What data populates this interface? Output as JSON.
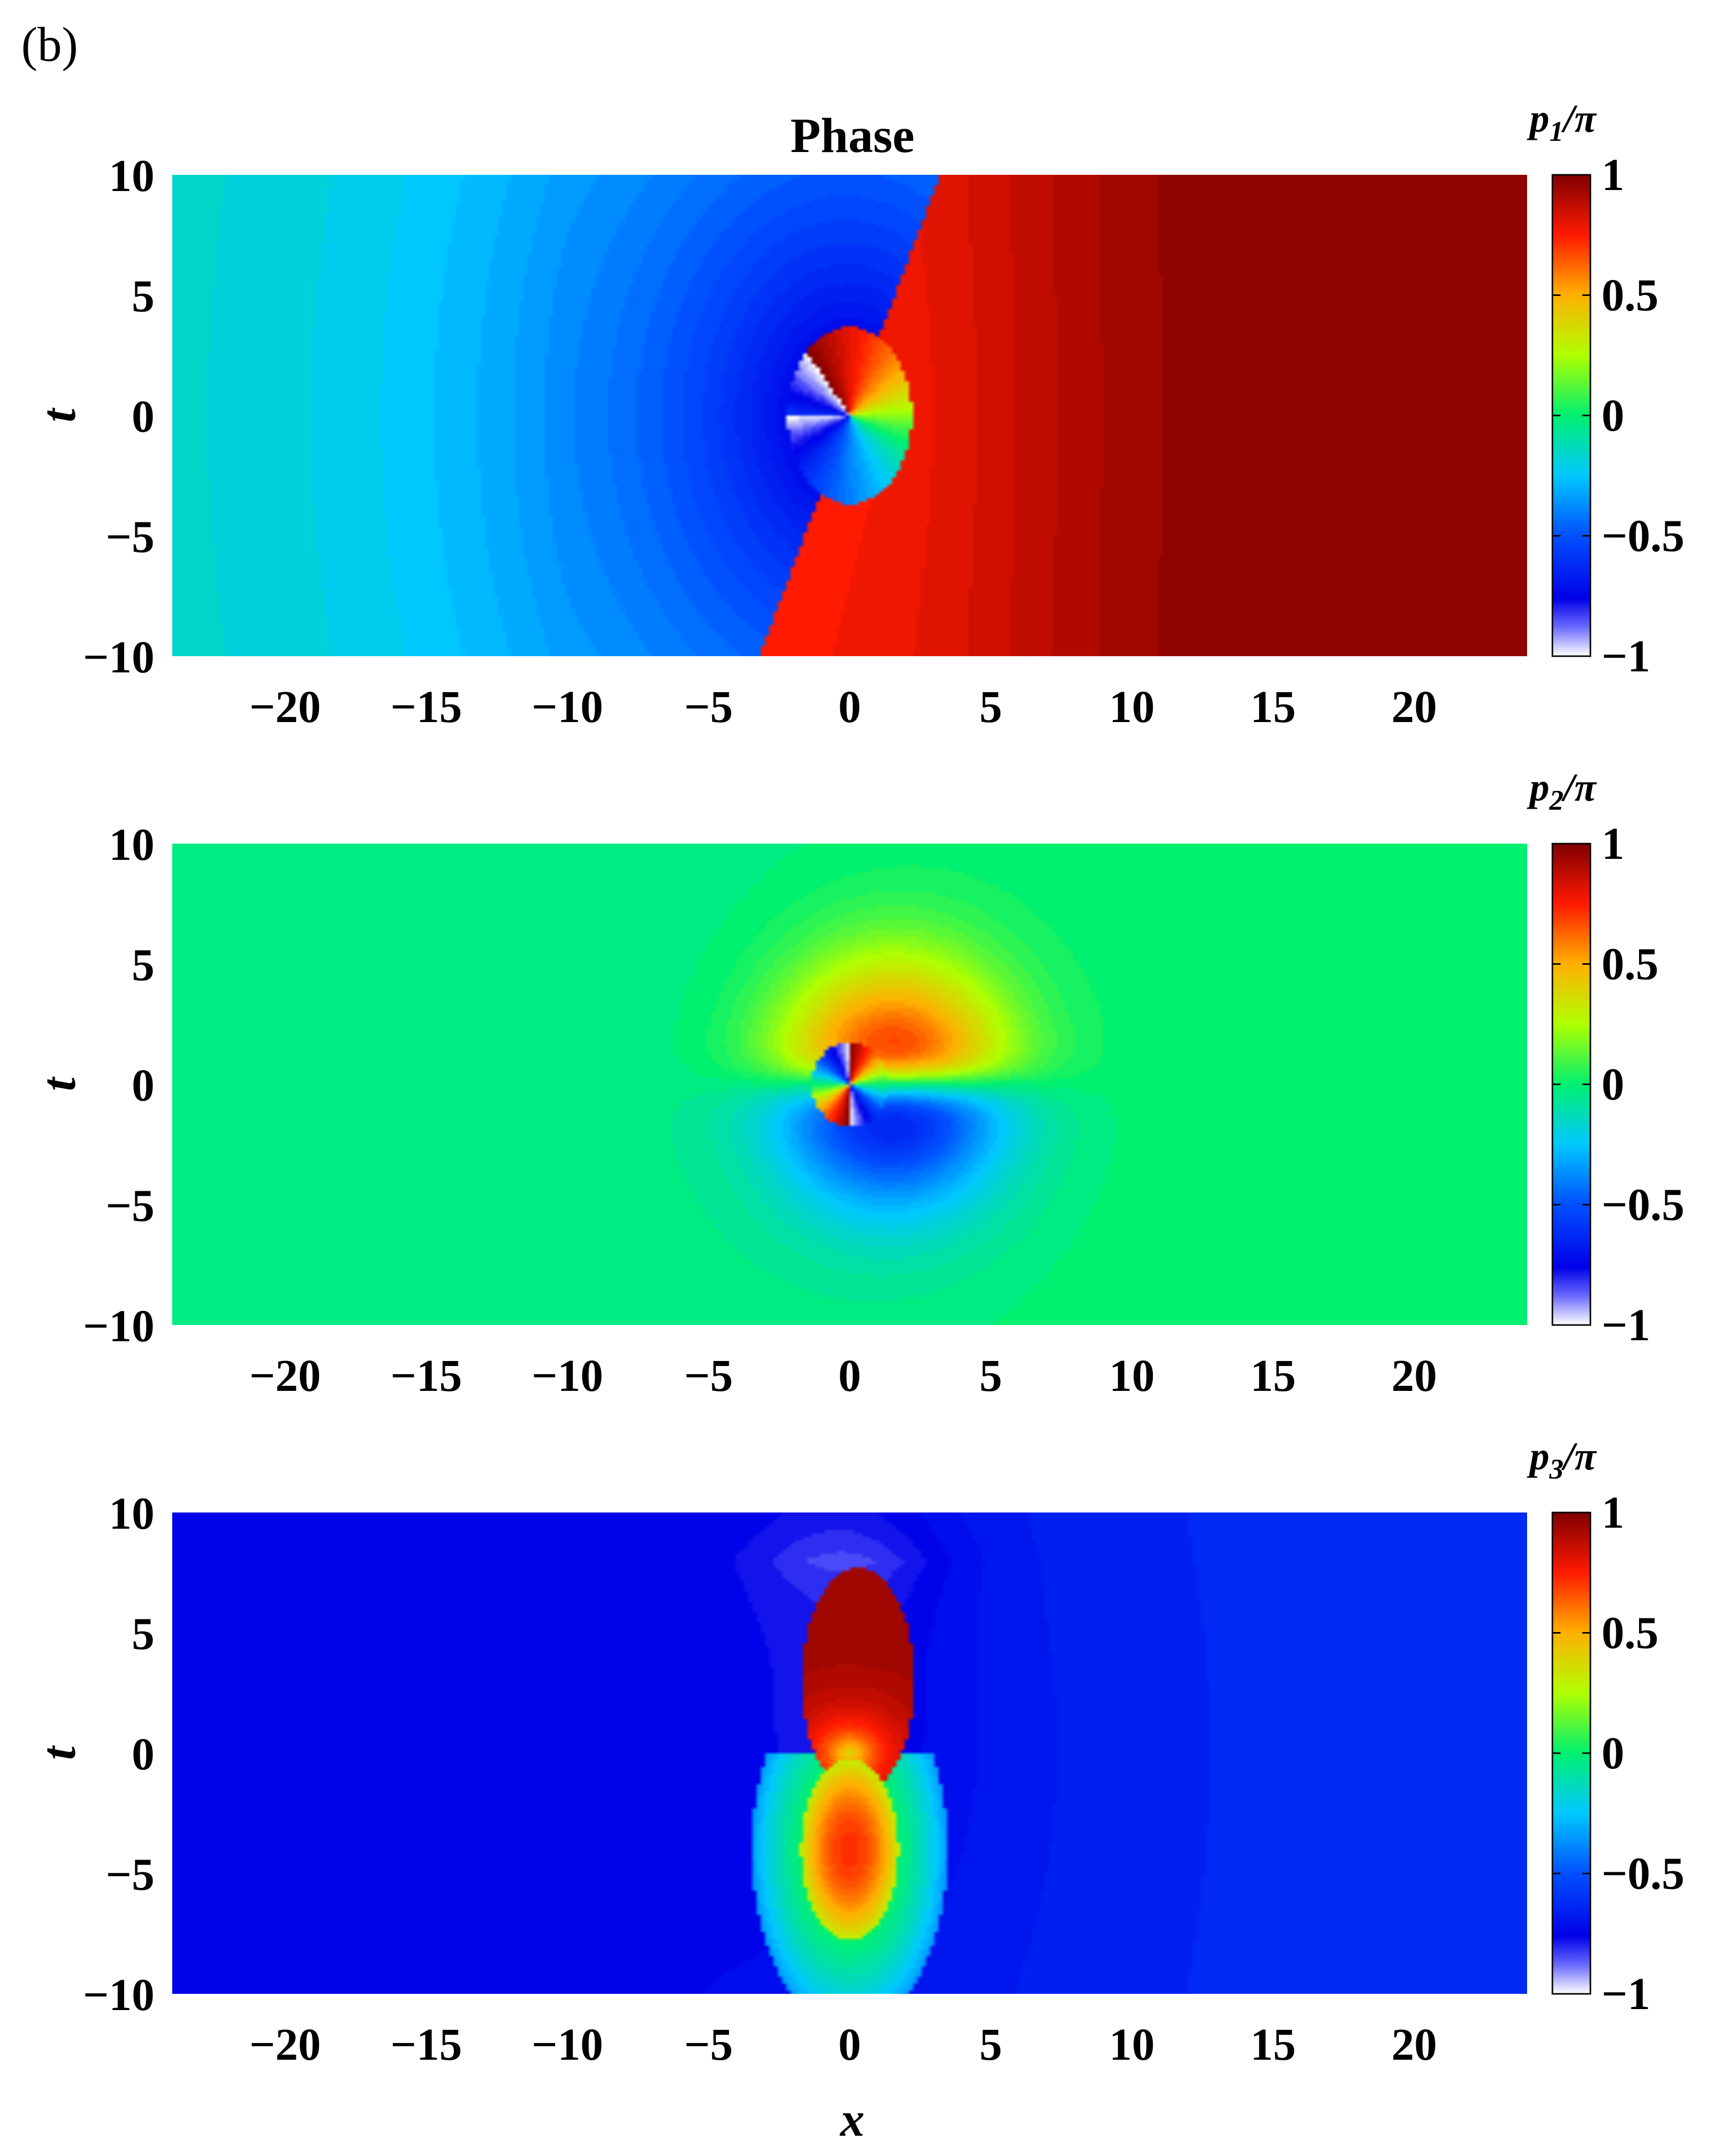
{
  "figure": {
    "panel_label": "(b)",
    "title": "Phase",
    "xlabel": "x",
    "ylabel": "t"
  },
  "chart_data": [
    {
      "type": "heatmap",
      "title": "Phase",
      "xlabel": "",
      "ylabel": "t",
      "xlim": [
        -24,
        24
      ],
      "ylim": [
        -10,
        10
      ],
      "xticks": [
        -20,
        -15,
        -10,
        -5,
        0,
        5,
        10,
        15,
        20
      ],
      "xtick_labels": [
        "−20",
        "−15",
        "−10",
        "−5",
        "0",
        "5",
        "10",
        "15",
        "20"
      ],
      "yticks": [
        10,
        5,
        0,
        -5,
        -10
      ],
      "ytick_labels": [
        "10",
        "5",
        "0",
        "−5",
        "−10"
      ],
      "colorbar": {
        "label_main": "p",
        "label_sub": "1",
        "label_tail": "/π",
        "range": [
          -1,
          1
        ],
        "ticks": [
          1,
          0.5,
          0,
          -0.5,
          -1
        ],
        "tick_labels": [
          "1",
          "0.5",
          "0",
          "−0.5",
          "−1"
        ]
      },
      "field": "p1"
    },
    {
      "type": "heatmap",
      "title": "",
      "xlabel": "",
      "ylabel": "t",
      "xlim": [
        -24,
        24
      ],
      "ylim": [
        -10,
        10
      ],
      "xticks": [
        -20,
        -15,
        -10,
        -5,
        0,
        5,
        10,
        15,
        20
      ],
      "xtick_labels": [
        "−20",
        "−15",
        "−10",
        "−5",
        "0",
        "5",
        "10",
        "15",
        "20"
      ],
      "yticks": [
        10,
        5,
        0,
        -5,
        -10
      ],
      "ytick_labels": [
        "10",
        "5",
        "0",
        "−5",
        "−10"
      ],
      "colorbar": {
        "label_main": "p",
        "label_sub": "2",
        "label_tail": "/π",
        "range": [
          -1,
          1
        ],
        "ticks": [
          1,
          0.5,
          0,
          -0.5,
          -1
        ],
        "tick_labels": [
          "1",
          "0.5",
          "0",
          "−0.5",
          "−1"
        ]
      },
      "field": "p2"
    },
    {
      "type": "heatmap",
      "title": "",
      "xlabel": "x",
      "ylabel": "t",
      "xlim": [
        -24,
        24
      ],
      "ylim": [
        -10,
        10
      ],
      "xticks": [
        -20,
        -15,
        -10,
        -5,
        0,
        5,
        10,
        15,
        20
      ],
      "xtick_labels": [
        "−20",
        "−15",
        "−10",
        "−5",
        "0",
        "5",
        "10",
        "15",
        "20"
      ],
      "yticks": [
        10,
        5,
        0,
        -5,
        -10
      ],
      "ytick_labels": [
        "10",
        "5",
        "0",
        "−5",
        "−10"
      ],
      "colorbar": {
        "label_main": "p",
        "label_sub": "3",
        "label_tail": "/π",
        "range": [
          -1,
          1
        ],
        "ticks": [
          1,
          0.5,
          0,
          -0.5,
          -1
        ],
        "tick_labels": [
          "1",
          "0.5",
          "0",
          "−0.5",
          "−1"
        ]
      },
      "field": "p3"
    }
  ],
  "colormap": "jet",
  "colormap_low_end": "#ffffff"
}
